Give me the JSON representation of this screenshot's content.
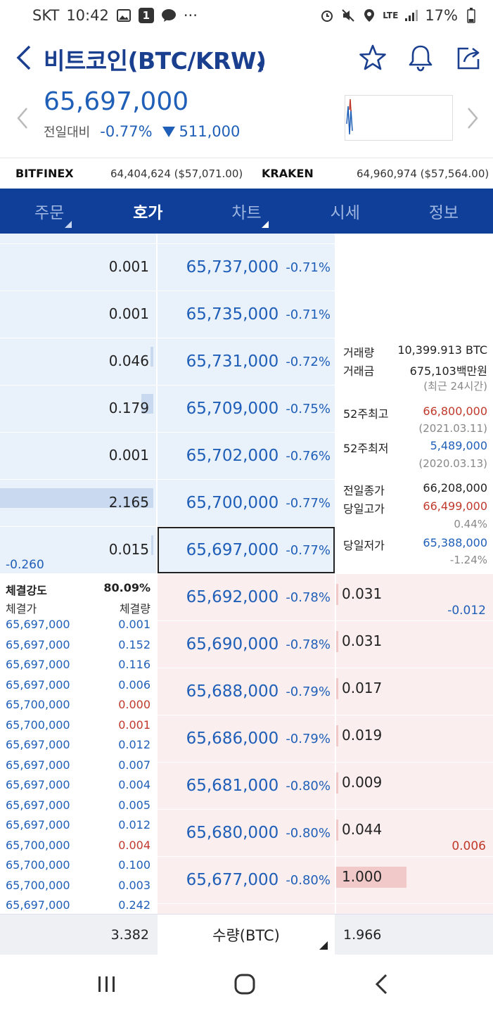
{
  "status_bar": {
    "carrier": "SKT",
    "time": "10:42",
    "notification_badge": "1",
    "more": "···",
    "network": "LTE",
    "battery": "17%"
  },
  "header": {
    "title": "비트코인(BTC/KRW)"
  },
  "quote": {
    "price": "65,697,000",
    "change_label": "전일대비",
    "change_pct": "-0.77%",
    "change_amount": "511,000"
  },
  "exchanges": [
    {
      "name": "BITFINEX",
      "value": "64,404,624 ($57,071.00)"
    },
    {
      "name": "KRAKEN",
      "value": "64,960,974 ($57,564.00)"
    }
  ],
  "tabs": [
    {
      "label": "주문",
      "has_menu": true,
      "active": false
    },
    {
      "label": "호가",
      "has_menu": true,
      "active": true
    },
    {
      "label": "차트",
      "has_menu": false,
      "active": false
    },
    {
      "label": "시세",
      "has_menu": false,
      "active": false
    },
    {
      "label": "정보",
      "has_menu": false,
      "active": false
    }
  ],
  "asks": [
    {
      "qty": "0.001",
      "price": "65,737,000",
      "pct": "-0.71%",
      "bar": 0.0
    },
    {
      "qty": "0.001",
      "price": "65,735,000",
      "pct": "-0.71%",
      "bar": 0.0
    },
    {
      "qty": "0.046",
      "price": "65,731,000",
      "pct": "-0.72%",
      "bar": 0.02
    },
    {
      "qty": "0.179",
      "price": "65,709,000",
      "pct": "-0.75%",
      "bar": 0.08
    },
    {
      "qty": "0.001",
      "price": "65,702,000",
      "pct": "-0.76%",
      "bar": 0.0
    },
    {
      "qty": "2.165",
      "price": "65,700,000",
      "pct": "-0.77%",
      "bar": 1.0
    },
    {
      "qty": "0.015",
      "price": "65,697,000",
      "pct": "-0.77%",
      "bar": 0.01
    }
  ],
  "ask_delta": "-0.260",
  "bids": [
    {
      "price": "65,692,000",
      "pct": "-0.78%",
      "qty": "0.031",
      "bar": 0.01
    },
    {
      "price": "65,690,000",
      "pct": "-0.78%",
      "qty": "0.031",
      "bar": 0.01
    },
    {
      "price": "65,688,000",
      "pct": "-0.79%",
      "qty": "0.017",
      "bar": 0.01
    },
    {
      "price": "65,686,000",
      "pct": "-0.79%",
      "qty": "0.019",
      "bar": 0.01
    },
    {
      "price": "65,681,000",
      "pct": "-0.80%",
      "qty": "0.009",
      "bar": 0.005
    },
    {
      "price": "65,680,000",
      "pct": "-0.80%",
      "qty": "0.044",
      "bar": 0.02
    },
    {
      "price": "65,677,000",
      "pct": "-0.80%",
      "qty": "1.000",
      "bar": 1.0
    }
  ],
  "bid_deltas": {
    "first": "-0.012",
    "sixth": "0.006"
  },
  "info": {
    "volume_label": "거래량",
    "volume": "10,399.913 BTC",
    "amount_label": "거래금",
    "amount": "675,103백만원",
    "period": "(최근 24시간)",
    "high52_label": "52주최고",
    "high52": "66,800,000",
    "high52_date": "(2021.03.11)",
    "low52_label": "52주최저",
    "low52": "5,489,000",
    "low52_date": "(2020.03.13)",
    "prev_close_label": "전일종가",
    "prev_close": "66,208,000",
    "day_high_label": "당일고가",
    "day_high": "66,499,000",
    "day_high_pct": "0.44%",
    "day_low_label": "당일저가",
    "day_low": "65,388,000",
    "day_low_pct": "-1.24%"
  },
  "trades": {
    "strength_label": "체결강도",
    "strength": "80.09%",
    "price_header": "체결가",
    "qty_header": "체결량",
    "rows": [
      {
        "price": "65,697,000",
        "qty": "0.001",
        "side": "sell"
      },
      {
        "price": "65,697,000",
        "qty": "0.152",
        "side": "sell"
      },
      {
        "price": "65,697,000",
        "qty": "0.116",
        "side": "sell"
      },
      {
        "price": "65,697,000",
        "qty": "0.006",
        "side": "sell"
      },
      {
        "price": "65,700,000",
        "qty": "0.000",
        "side": "buy"
      },
      {
        "price": "65,700,000",
        "qty": "0.001",
        "side": "buy"
      },
      {
        "price": "65,697,000",
        "qty": "0.012",
        "side": "sell"
      },
      {
        "price": "65,697,000",
        "qty": "0.007",
        "side": "sell"
      },
      {
        "price": "65,697,000",
        "qty": "0.004",
        "side": "sell"
      },
      {
        "price": "65,697,000",
        "qty": "0.005",
        "side": "sell"
      },
      {
        "price": "65,697,000",
        "qty": "0.012",
        "side": "sell"
      },
      {
        "price": "65,700,000",
        "qty": "0.004",
        "side": "buy"
      },
      {
        "price": "65,700,000",
        "qty": "0.100",
        "side": "sell"
      },
      {
        "price": "65,700,000",
        "qty": "0.003",
        "side": "sell"
      },
      {
        "price": "65,697,000",
        "qty": "0.242",
        "side": "sell"
      }
    ]
  },
  "footer": {
    "ask_total": "3.382",
    "unit_label": "수량(BTC)",
    "bid_total": "1.966"
  },
  "colors": {
    "brand": "#0f3f99",
    "down": "#1f5fb8",
    "up": "#c0392b",
    "ask_bg": "#e9f1fb",
    "bid_bg": "#fbeeee"
  }
}
